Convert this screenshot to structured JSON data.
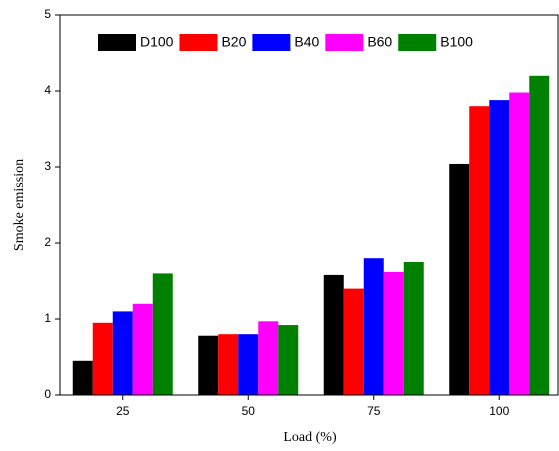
{
  "chart_data": {
    "type": "bar",
    "x_label": "Load (%)",
    "y_label": "Smoke emission",
    "categories": [
      "25",
      "50",
      "75",
      "100"
    ],
    "series": [
      {
        "name": "D100",
        "color": "#000000",
        "values": [
          0.45,
          0.78,
          1.58,
          3.04
        ]
      },
      {
        "name": "B20",
        "color": "#ff0000",
        "values": [
          0.95,
          0.8,
          1.4,
          3.8
        ]
      },
      {
        "name": "B40",
        "color": "#0000ff",
        "values": [
          1.1,
          0.8,
          1.8,
          3.88
        ]
      },
      {
        "name": "B60",
        "color": "#ff00ff",
        "values": [
          1.2,
          0.97,
          1.62,
          3.98
        ]
      },
      {
        "name": "B100",
        "color": "#008000",
        "values": [
          1.6,
          0.92,
          1.75,
          4.2
        ]
      }
    ],
    "ylim": [
      0,
      5
    ],
    "yticks": [
      0,
      1,
      2,
      3,
      4,
      5
    ],
    "legend": "top"
  }
}
